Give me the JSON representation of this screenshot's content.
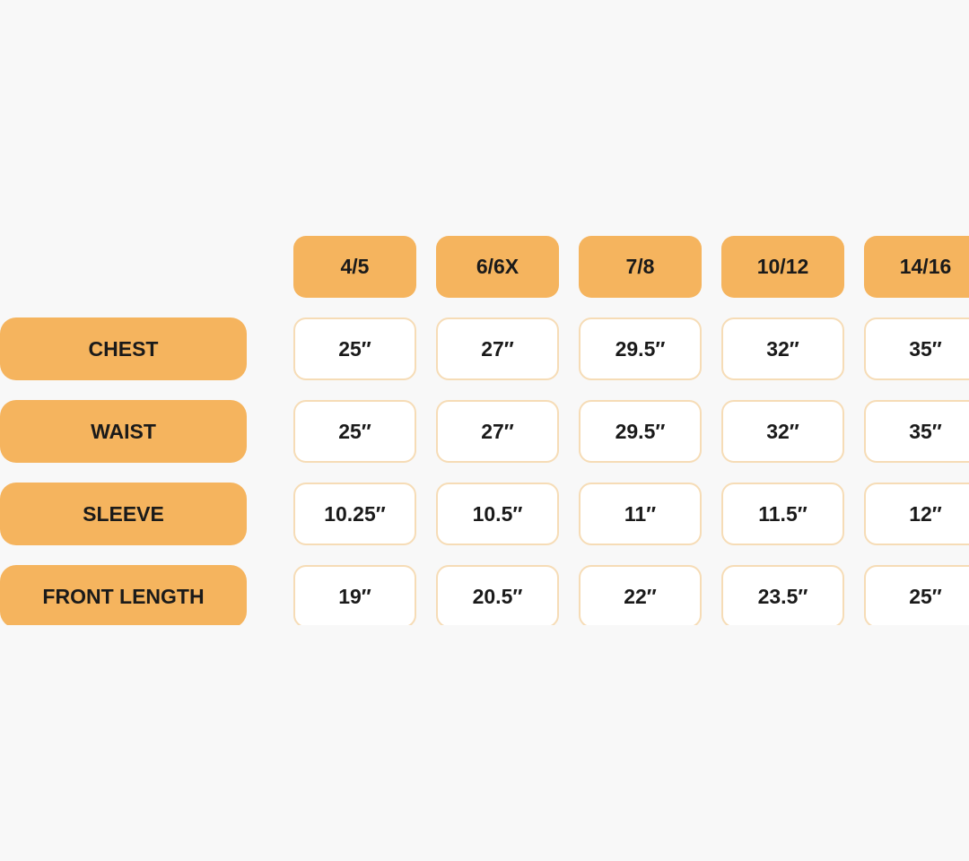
{
  "size_chart": {
    "accent_color": "#f5b45e",
    "sizes": [
      "4/5",
      "6/6X",
      "7/8",
      "10/12",
      "14/16"
    ],
    "rows": [
      {
        "label": "CHEST",
        "values": [
          "25″",
          "27″",
          "29.5″",
          "32″",
          "35″"
        ]
      },
      {
        "label": "WAIST",
        "values": [
          "25″",
          "27″",
          "29.5″",
          "32″",
          "35″"
        ]
      },
      {
        "label": "SLEEVE",
        "values": [
          "10.25″",
          "10.5″",
          "11″",
          "11.5″",
          "12″"
        ]
      },
      {
        "label": "FRONT LENGTH",
        "values": [
          "19″",
          "20.5″",
          "22″",
          "23.5″",
          "25″"
        ]
      }
    ]
  }
}
